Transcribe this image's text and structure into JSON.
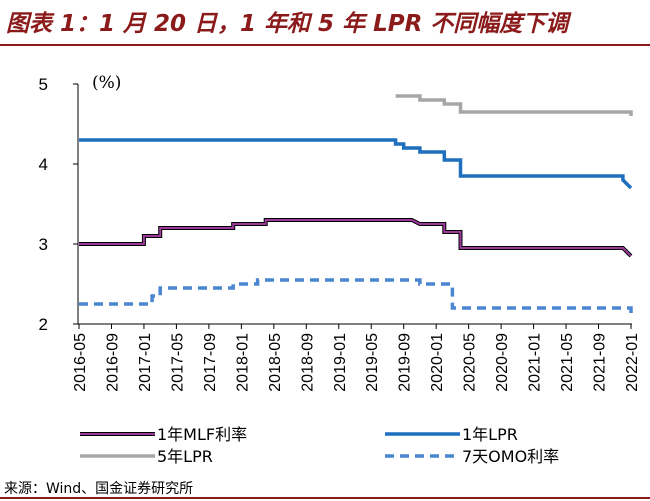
{
  "title": "图表 1：1 月 20 日，1 年和 5 年 LPR 不同幅度下调",
  "source": "来源：Wind、国金证券研究所",
  "colors": {
    "accent": "#8b1a1a"
  },
  "chart_data": {
    "type": "line",
    "unit_label": "(%)",
    "ylim": [
      2,
      5
    ],
    "yticks": [
      2,
      3,
      4,
      5
    ],
    "xlim": [
      "2016-05",
      "2022-01"
    ],
    "xticks": [
      "2016-05",
      "2016-09",
      "2017-01",
      "2017-05",
      "2017-09",
      "2018-01",
      "2018-05",
      "2018-09",
      "2019-01",
      "2019-05",
      "2019-09",
      "2020-01",
      "2020-05",
      "2020-09",
      "2021-01",
      "2021-05",
      "2021-09",
      "2022-01"
    ],
    "grid": false,
    "legend_position": "bottom",
    "series": [
      {
        "name": "1年MLF利率",
        "color": "#000000",
        "fill": "#9b3a9b",
        "style": "double",
        "points": [
          [
            "2016-05",
            3.0
          ],
          [
            "2017-01",
            3.0
          ],
          [
            "2017-01",
            3.1
          ],
          [
            "2017-03",
            3.1
          ],
          [
            "2017-03",
            3.2
          ],
          [
            "2017-12",
            3.2
          ],
          [
            "2017-12",
            3.25
          ],
          [
            "2018-04",
            3.25
          ],
          [
            "2018-04",
            3.3
          ],
          [
            "2019-10",
            3.3
          ],
          [
            "2019-11",
            3.25
          ],
          [
            "2020-02",
            3.25
          ],
          [
            "2020-02",
            3.15
          ],
          [
            "2020-04",
            3.15
          ],
          [
            "2020-04",
            2.95
          ],
          [
            "2021-12",
            2.95
          ],
          [
            "2022-01",
            2.85
          ]
        ]
      },
      {
        "name": "1年LPR",
        "color": "#1f6fbf",
        "style": "solid",
        "points": [
          [
            "2016-05",
            4.3
          ],
          [
            "2019-08",
            4.3
          ],
          [
            "2019-08",
            4.25
          ],
          [
            "2019-09",
            4.25
          ],
          [
            "2019-09",
            4.2
          ],
          [
            "2019-11",
            4.2
          ],
          [
            "2019-11",
            4.15
          ],
          [
            "2020-02",
            4.15
          ],
          [
            "2020-02",
            4.05
          ],
          [
            "2020-04",
            4.05
          ],
          [
            "2020-04",
            3.85
          ],
          [
            "2021-12",
            3.85
          ],
          [
            "2021-12",
            3.8
          ],
          [
            "2022-01",
            3.7
          ]
        ]
      },
      {
        "name": "5年LPR",
        "color": "#a6a6a6",
        "style": "solid",
        "points": [
          [
            "2019-08",
            4.85
          ],
          [
            "2019-11",
            4.85
          ],
          [
            "2019-11",
            4.8
          ],
          [
            "2020-02",
            4.8
          ],
          [
            "2020-02",
            4.75
          ],
          [
            "2020-04",
            4.75
          ],
          [
            "2020-04",
            4.65
          ],
          [
            "2022-01",
            4.65
          ],
          [
            "2022-01",
            4.6
          ]
        ]
      },
      {
        "name": "7天OMO利率",
        "color": "#4a86d1",
        "style": "dashed",
        "points": [
          [
            "2016-05",
            2.25
          ],
          [
            "2017-02",
            2.25
          ],
          [
            "2017-02",
            2.35
          ],
          [
            "2017-03",
            2.35
          ],
          [
            "2017-03",
            2.45
          ],
          [
            "2017-12",
            2.45
          ],
          [
            "2017-12",
            2.5
          ],
          [
            "2018-03",
            2.5
          ],
          [
            "2018-03",
            2.55
          ],
          [
            "2019-11",
            2.55
          ],
          [
            "2019-11",
            2.5
          ],
          [
            "2020-03",
            2.5
          ],
          [
            "2020-03",
            2.4
          ],
          [
            "2020-03",
            2.4
          ],
          [
            "2020-03",
            2.2
          ],
          [
            "2022-01",
            2.2
          ],
          [
            "2022-01",
            2.1
          ]
        ]
      }
    ]
  }
}
